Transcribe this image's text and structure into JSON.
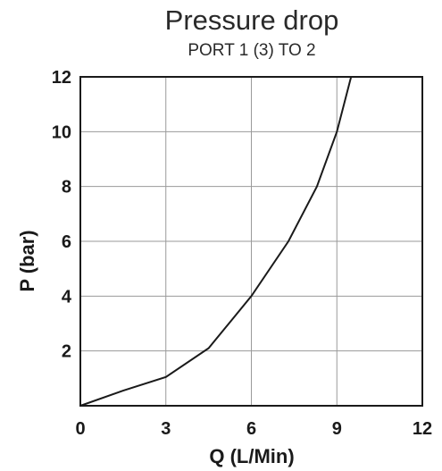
{
  "chart_data": {
    "type": "line",
    "title": "Pressure drop",
    "subtitle": "PORT 1 (3) TO 2",
    "xlabel": "Q (L/Min)",
    "ylabel": "P (bar)",
    "xlim": [
      0,
      12
    ],
    "ylim": [
      0,
      12
    ],
    "xticks": [
      0,
      3,
      6,
      9,
      12
    ],
    "yticks": [
      2,
      4,
      6,
      8,
      10,
      12
    ],
    "grid": true,
    "series": [
      {
        "x": [
          0,
          1.5,
          3,
          4.5,
          6,
          7.3,
          8.3,
          9,
          9.5
        ],
        "y": [
          0,
          0.55,
          1.05,
          2.1,
          4,
          6,
          8,
          10,
          12
        ]
      }
    ]
  }
}
